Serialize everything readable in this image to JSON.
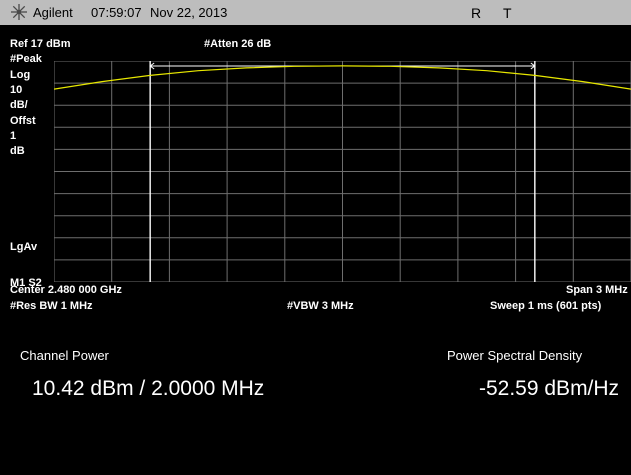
{
  "title_bar": {
    "brand": "Agilent",
    "time": "07:59:07",
    "date": "Nov 22, 2013",
    "status_r": "R",
    "status_t": "T",
    "logo_icon": "agilent-spark-icon"
  },
  "settings": {
    "ref_level": "Ref 17 dBm",
    "atten": "#Atten 26 dB",
    "detector": "#Peak",
    "scale_type": "Log",
    "scale_value": "10",
    "scale_unit": "dB/",
    "offset_label": "Offst",
    "offset_value": "1",
    "offset_unit": "dB",
    "averaging": "LgAv",
    "marker_state": "M1  S2"
  },
  "footer": {
    "center_freq": "Center 2.480 000 GHz",
    "span": "Span 3 MHz",
    "rbw": "#Res BW 1 MHz",
    "vbw": "#VBW 3 MHz",
    "sweep": "Sweep 1 ms (601 pts)"
  },
  "measurement": {
    "channel_power_label": "Channel Power",
    "channel_power_value": "10.42 dBm / 2.0000 MHz",
    "psd_label": "Power Spectral Density",
    "psd_value": "-52.59 dBm/Hz"
  },
  "colors": {
    "trace": "#e8e800",
    "grid": "#6e6e6e",
    "background": "#000000",
    "title_bar": "#bdbdbd"
  },
  "chart_data": {
    "type": "line",
    "x_unit": "MHz",
    "xlim": [
      2478.5,
      2481.5
    ],
    "ylim": [
      -83,
      17
    ],
    "y_divisions": 10,
    "grid": true,
    "channel_bandwidth_mhz": 2.0,
    "series": [
      {
        "x": [
          2478.5,
          2478.75,
          2479.0,
          2479.25,
          2479.5,
          2479.75,
          2480.0,
          2480.25,
          2480.5,
          2480.75,
          2481.0,
          2481.25,
          2481.5
        ],
        "y": [
          4.3,
          7.7,
          10.5,
          12.6,
          13.9,
          14.6,
          14.8,
          14.6,
          13.9,
          12.6,
          10.5,
          7.7,
          4.3
        ]
      }
    ]
  }
}
